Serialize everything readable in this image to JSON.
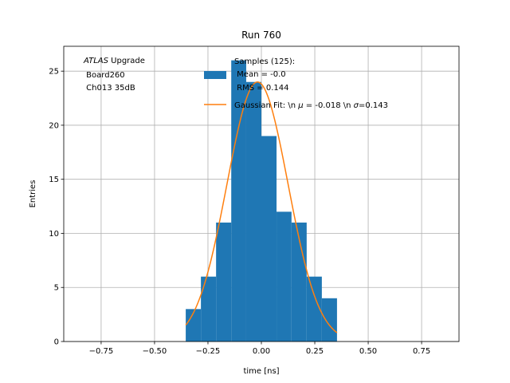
{
  "chart_data": {
    "type": "bar",
    "title": "Run 760",
    "xlabel": "time [ns]",
    "ylabel": "Entries",
    "xlim": [
      -0.925,
      0.925
    ],
    "ylim": [
      0,
      27.3
    ],
    "grid": true,
    "xticks": [
      -0.75,
      -0.5,
      -0.25,
      0.0,
      0.25,
      0.5,
      0.75
    ],
    "xtick_labels": [
      "−0.75",
      "−0.50",
      "−0.25",
      "0.00",
      "0.25",
      "0.50",
      "0.75"
    ],
    "yticks": [
      0,
      5,
      10,
      15,
      20,
      25
    ],
    "ytick_labels": [
      "0",
      "5",
      "10",
      "15",
      "20",
      "25"
    ],
    "histogram": {
      "color": "#1f77b4",
      "bin_edges": [
        -0.354,
        -0.283,
        -0.212,
        -0.141,
        -0.071,
        0.0,
        0.071,
        0.141,
        0.212,
        0.283,
        0.354
      ],
      "counts": [
        3,
        6,
        11,
        26,
        24,
        19,
        12,
        11,
        6,
        4
      ]
    },
    "fit": {
      "color": "#ff7f0e",
      "amplitude": 24.0,
      "mu": -0.018,
      "sigma": 0.143,
      "x_range": [
        -0.354,
        0.354
      ]
    },
    "annotation": {
      "line1_italic": "ATLAS",
      "line1_rest": " Upgrade",
      "line2": " Board260",
      "line3": " Ch013 35dB"
    },
    "legend": {
      "position": "top-right",
      "hist_label_lines": [
        "Samples (125):",
        " Mean = -0.0",
        " RMS = 0.144"
      ],
      "fit_label_pre": "Gaussian Fit: \\n ",
      "fit_mu_symbol": "μ",
      "fit_label_mid": " = -0.018 \\n ",
      "fit_sigma_symbol": "σ",
      "fit_label_post": "=0.143"
    }
  }
}
